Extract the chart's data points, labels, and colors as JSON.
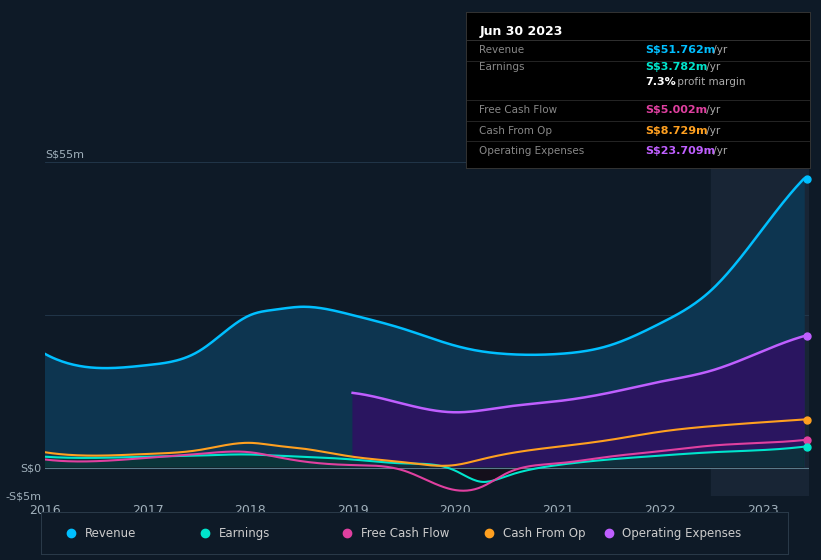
{
  "bg_color": "#0e1a27",
  "plot_bg_color": "#0e1a27",
  "chart_fill_color": "#0d2d45",
  "grid_color": "#1e3348",
  "title_date": "Jun 30 2023",
  "years_ctrl": [
    2016,
    2016.5,
    2017,
    2017.5,
    2018,
    2018.25,
    2018.5,
    2019,
    2019.5,
    2020,
    2020.25,
    2020.5,
    2021,
    2021.5,
    2022,
    2022.5,
    2023,
    2023.4
  ],
  "revenue": [
    20.5,
    18,
    18.5,
    21,
    27.5,
    28.5,
    29,
    27.5,
    25,
    22,
    21,
    20.5,
    20.5,
    22,
    26,
    32,
    43,
    52
  ],
  "earnings": [
    2.0,
    1.8,
    2.0,
    2.2,
    2.4,
    2.2,
    2.0,
    1.5,
    0.8,
    -0.5,
    -2.5,
    -1.5,
    0.5,
    1.5,
    2.2,
    2.8,
    3.2,
    3.8
  ],
  "free_cash_flow": [
    1.5,
    1.2,
    1.8,
    2.5,
    2.8,
    2.0,
    1.2,
    0.5,
    -0.5,
    -4.0,
    -3.5,
    -1.0,
    0.8,
    2.0,
    3.0,
    4.0,
    4.5,
    5.0
  ],
  "cash_from_op": [
    2.8,
    2.2,
    2.5,
    3.2,
    4.5,
    4.0,
    3.5,
    2.0,
    1.0,
    0.5,
    1.5,
    2.5,
    3.8,
    5.0,
    6.5,
    7.5,
    8.2,
    8.7
  ],
  "opex_years": [
    2019,
    2019.5,
    2020,
    2020.5,
    2021,
    2021.5,
    2022,
    2022.5,
    2023,
    2023.4
  ],
  "operating_expenses": [
    13.5,
    11.5,
    10.0,
    11.0,
    12.0,
    13.5,
    15.5,
    17.5,
    21.0,
    23.7
  ],
  "ylim": [
    -5,
    55
  ],
  "ytick_positions": [
    -5,
    0
  ],
  "ytick_labels": [
    "-S$5m",
    "S$0"
  ],
  "top_label": "S$55m",
  "xtick_years": [
    2016,
    2017,
    2018,
    2019,
    2020,
    2021,
    2022,
    2023
  ],
  "revenue_color": "#00bfff",
  "revenue_fill": "#0d3550",
  "earnings_color": "#00e5cc",
  "earnings_fill": "#0a3535",
  "fcf_color": "#e040a0",
  "cash_op_color": "#ffa020",
  "opex_color": "#bf5fff",
  "opex_fill": "#2a1560",
  "highlight_x": 2022.5,
  "highlight_color": "#182535",
  "dot_colors": {
    "Revenue": "#00bfff",
    "Earnings": "#00e5cc",
    "Free Cash Flow": "#e040a0",
    "Cash From Op": "#ffa020",
    "Operating Expenses": "#bf5fff"
  },
  "legend_items": [
    {
      "label": "Revenue",
      "color": "#00bfff"
    },
    {
      "label": "Earnings",
      "color": "#00e5cc"
    },
    {
      "label": "Free Cash Flow",
      "color": "#e040a0"
    },
    {
      "label": "Cash From Op",
      "color": "#ffa020"
    },
    {
      "label": "Operating Expenses",
      "color": "#bf5fff"
    }
  ],
  "info_rows": [
    {
      "label": "Revenue",
      "value": "S$51.762m",
      "val_color": "#00bfff",
      "suffix": " /yr"
    },
    {
      "label": "Earnings",
      "value": "S$3.782m",
      "val_color": "#00e5cc",
      "suffix": " /yr"
    },
    {
      "label": "",
      "value": "7.3%",
      "val_color": "#ffffff",
      "suffix": " profit margin"
    },
    {
      "label": "Free Cash Flow",
      "value": "S$5.002m",
      "val_color": "#e040a0",
      "suffix": " /yr"
    },
    {
      "label": "Cash From Op",
      "value": "S$8.729m",
      "val_color": "#ffa020",
      "suffix": " /yr"
    },
    {
      "label": "Operating Expenses",
      "value": "S$23.709m",
      "val_color": "#bf5fff",
      "suffix": " /yr"
    }
  ]
}
